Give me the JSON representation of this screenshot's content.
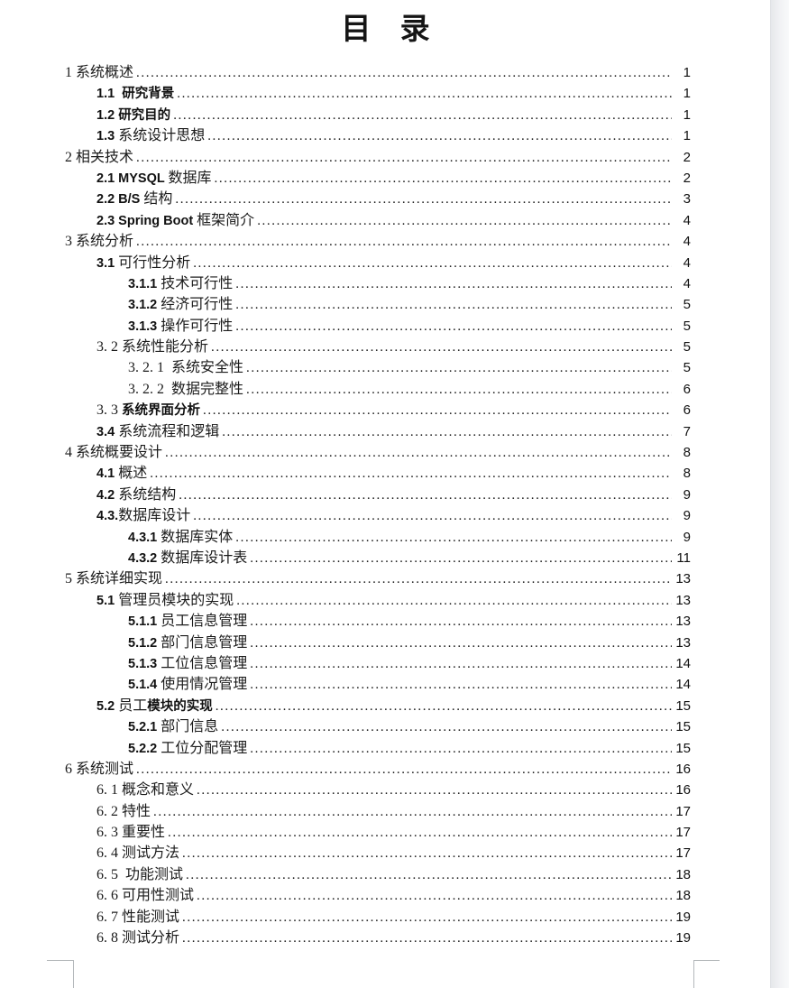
{
  "page": {
    "title": "目 录"
  },
  "colors": {
    "text": "#1b1b1b",
    "boundary_mark": "#b4b8bb",
    "page_edge_strip": "#e6e8eb"
  },
  "toc": {
    "items": [
      {
        "level": 0,
        "page": "1",
        "segments": [
          {
            "text": "1 ",
            "bold": false
          },
          {
            "text": "系统概述",
            "bold": false
          }
        ]
      },
      {
        "level": 1,
        "page": "1",
        "segments": [
          {
            "text": "1.1  ",
            "bold": true
          },
          {
            "text": "研究背景",
            "bold": true
          }
        ]
      },
      {
        "level": 1,
        "page": "1",
        "segments": [
          {
            "text": "1.2 ",
            "bold": true
          },
          {
            "text": "研究目的",
            "bold": true
          }
        ]
      },
      {
        "level": 1,
        "page": "1",
        "segments": [
          {
            "text": "1.3 ",
            "bold": true
          },
          {
            "text": "系统设计思想",
            "bold": false
          }
        ]
      },
      {
        "level": 0,
        "page": "2",
        "segments": [
          {
            "text": "2 ",
            "bold": false
          },
          {
            "text": "相关技术",
            "bold": false
          }
        ]
      },
      {
        "level": 1,
        "page": "2",
        "segments": [
          {
            "text": "2.1 MYSQL ",
            "bold": true
          },
          {
            "text": "数据库",
            "bold": false
          }
        ]
      },
      {
        "level": 1,
        "page": "3",
        "segments": [
          {
            "text": "2.2 B/S ",
            "bold": true
          },
          {
            "text": "结构",
            "bold": false
          }
        ]
      },
      {
        "level": 1,
        "page": "4",
        "segments": [
          {
            "text": "2.3 Spring Boot ",
            "bold": true
          },
          {
            "text": "框架简介",
            "bold": false
          }
        ]
      },
      {
        "level": 0,
        "page": "4",
        "segments": [
          {
            "text": "3 ",
            "bold": false
          },
          {
            "text": "系统分析",
            "bold": false
          }
        ]
      },
      {
        "level": 1,
        "page": "4",
        "segments": [
          {
            "text": "3.1 ",
            "bold": true
          },
          {
            "text": "可行性分析",
            "bold": false
          }
        ]
      },
      {
        "level": 2,
        "page": "4",
        "segments": [
          {
            "text": "3.1.1 ",
            "bold": true
          },
          {
            "text": "技术可行性",
            "bold": false
          }
        ]
      },
      {
        "level": 2,
        "page": "5",
        "segments": [
          {
            "text": "3.1.2 ",
            "bold": true
          },
          {
            "text": "经济可行性",
            "bold": false
          }
        ]
      },
      {
        "level": 2,
        "page": "5",
        "segments": [
          {
            "text": "3.1.3 ",
            "bold": true
          },
          {
            "text": "操作可行性",
            "bold": false
          }
        ]
      },
      {
        "level": 1,
        "page": "5",
        "segments": [
          {
            "text": "3. 2 ",
            "bold": false
          },
          {
            "text": "系统性能分析",
            "bold": false
          }
        ]
      },
      {
        "level": 2,
        "page": "5",
        "segments": [
          {
            "text": "3. 2. 1  ",
            "bold": false
          },
          {
            "text": "系统安全性",
            "bold": false
          }
        ]
      },
      {
        "level": 2,
        "page": "6",
        "segments": [
          {
            "text": "3. 2. 2  ",
            "bold": false
          },
          {
            "text": "数据完整性",
            "bold": false
          }
        ]
      },
      {
        "level": 1,
        "page": "6",
        "segments": [
          {
            "text": "3. 3 ",
            "bold": false
          },
          {
            "text": "系统界面分析",
            "bold": true
          }
        ]
      },
      {
        "level": 1,
        "page": "7",
        "segments": [
          {
            "text": "3.4 ",
            "bold": true
          },
          {
            "text": "系统流程和逻辑",
            "bold": false
          }
        ]
      },
      {
        "level": 0,
        "page": "8",
        "segments": [
          {
            "text": "4 ",
            "bold": false
          },
          {
            "text": "系统概要设计",
            "bold": false
          }
        ]
      },
      {
        "level": 1,
        "page": "8",
        "segments": [
          {
            "text": "4.1 ",
            "bold": true
          },
          {
            "text": "概述",
            "bold": false
          }
        ]
      },
      {
        "level": 1,
        "page": "9",
        "segments": [
          {
            "text": "4.2 ",
            "bold": true
          },
          {
            "text": "系统结构",
            "bold": false
          }
        ]
      },
      {
        "level": 1,
        "page": "9",
        "segments": [
          {
            "text": "4.3.",
            "bold": true
          },
          {
            "text": "数据库设计",
            "bold": false
          }
        ]
      },
      {
        "level": 2,
        "page": "9",
        "segments": [
          {
            "text": "4.3.1 ",
            "bold": true
          },
          {
            "text": "数据库实体",
            "bold": false
          }
        ]
      },
      {
        "level": 2,
        "page": "11",
        "segments": [
          {
            "text": "4.3.2 ",
            "bold": true
          },
          {
            "text": "数据库设计表",
            "bold": false
          }
        ]
      },
      {
        "level": 0,
        "page": "13",
        "segments": [
          {
            "text": "5 ",
            "bold": false
          },
          {
            "text": "系统详细实现",
            "bold": false
          }
        ]
      },
      {
        "level": 1,
        "page": "13",
        "segments": [
          {
            "text": "5.1 ",
            "bold": true
          },
          {
            "text": "管理员模块的实现",
            "bold": false
          }
        ]
      },
      {
        "level": 2,
        "page": "13",
        "segments": [
          {
            "text": "5.1.1 ",
            "bold": true
          },
          {
            "text": "员工信息管理",
            "bold": false
          }
        ]
      },
      {
        "level": 2,
        "page": "13",
        "segments": [
          {
            "text": "5.1.2 ",
            "bold": true
          },
          {
            "text": "部门信息管理",
            "bold": false
          }
        ]
      },
      {
        "level": 2,
        "page": "14",
        "segments": [
          {
            "text": "5.1.3 ",
            "bold": true
          },
          {
            "text": "工位信息管理",
            "bold": false
          }
        ]
      },
      {
        "level": 2,
        "page": "14",
        "segments": [
          {
            "text": "5.1.4 ",
            "bold": true
          },
          {
            "text": "使用情况管理",
            "bold": false
          }
        ]
      },
      {
        "level": 1,
        "page": "15",
        "segments": [
          {
            "text": "5.2 ",
            "bold": true
          },
          {
            "text": "员工",
            "bold": false
          },
          {
            "text": "模块的实现",
            "bold": true
          }
        ]
      },
      {
        "level": 2,
        "page": "15",
        "segments": [
          {
            "text": "5.2.1 ",
            "bold": true
          },
          {
            "text": "部门信息",
            "bold": false
          }
        ]
      },
      {
        "level": 2,
        "page": "15",
        "segments": [
          {
            "text": "5.2.2 ",
            "bold": true
          },
          {
            "text": "工位分配管理",
            "bold": false
          }
        ]
      },
      {
        "level": 0,
        "page": "16",
        "segments": [
          {
            "text": "6 ",
            "bold": false
          },
          {
            "text": "系统测试",
            "bold": false
          }
        ]
      },
      {
        "level": 1,
        "page": "16",
        "segments": [
          {
            "text": "6. 1 ",
            "bold": false
          },
          {
            "text": "概念和意义",
            "bold": false
          }
        ]
      },
      {
        "level": 1,
        "page": "17",
        "segments": [
          {
            "text": "6. 2 ",
            "bold": false
          },
          {
            "text": "特性",
            "bold": false
          }
        ]
      },
      {
        "level": 1,
        "page": "17",
        "segments": [
          {
            "text": "6. 3 ",
            "bold": false
          },
          {
            "text": "重要性",
            "bold": false
          }
        ]
      },
      {
        "level": 1,
        "page": "17",
        "segments": [
          {
            "text": "6. 4 ",
            "bold": false
          },
          {
            "text": "测试方法",
            "bold": false
          }
        ]
      },
      {
        "level": 1,
        "page": "18",
        "segments": [
          {
            "text": "6. 5  ",
            "bold": false
          },
          {
            "text": "功能测试",
            "bold": false
          }
        ]
      },
      {
        "level": 1,
        "page": "18",
        "segments": [
          {
            "text": "6. 6 ",
            "bold": false
          },
          {
            "text": "可用性测试",
            "bold": false
          }
        ]
      },
      {
        "level": 1,
        "page": "19",
        "segments": [
          {
            "text": "6. 7 ",
            "bold": false
          },
          {
            "text": "性能测试",
            "bold": false
          }
        ]
      },
      {
        "level": 1,
        "page": "19",
        "segments": [
          {
            "text": "6. 8 ",
            "bold": false
          },
          {
            "text": "测试分析",
            "bold": false
          }
        ]
      }
    ]
  }
}
